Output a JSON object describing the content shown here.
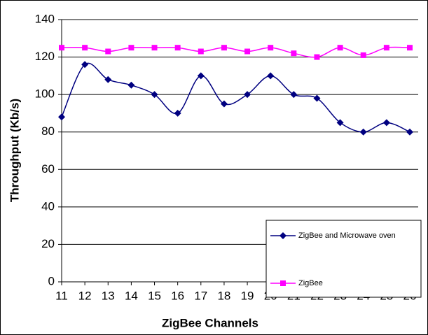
{
  "chart_data": {
    "type": "line",
    "x_label": "ZigBee Channels",
    "y_label": "Throughput (Kb/s)",
    "x": [
      11,
      12,
      13,
      14,
      15,
      16,
      17,
      18,
      19,
      20,
      21,
      22,
      23,
      24,
      25,
      26
    ],
    "xlim": [
      11,
      26
    ],
    "xticks": [
      11,
      12,
      13,
      14,
      15,
      16,
      17,
      18,
      19,
      20,
      21,
      22,
      23,
      24,
      25,
      26
    ],
    "ylim": [
      0,
      140
    ],
    "yticks": [
      0,
      20,
      40,
      60,
      80,
      100,
      120,
      140
    ],
    "grid": true,
    "smooth": true,
    "legend": "lower right",
    "series": [
      {
        "name": "ZigBee and  Microwave oven",
        "color": "#000080",
        "marker": "diamond",
        "values": [
          88,
          116,
          108,
          105,
          100,
          90,
          110,
          95,
          100,
          110,
          100,
          98,
          85,
          80,
          85,
          80
        ]
      },
      {
        "name": "ZigBee",
        "color": "#ff00ff",
        "marker": "square",
        "values": [
          125,
          125,
          123,
          125,
          125,
          125,
          123,
          125,
          123,
          125,
          122,
          120,
          125,
          121,
          125,
          125
        ]
      }
    ]
  }
}
